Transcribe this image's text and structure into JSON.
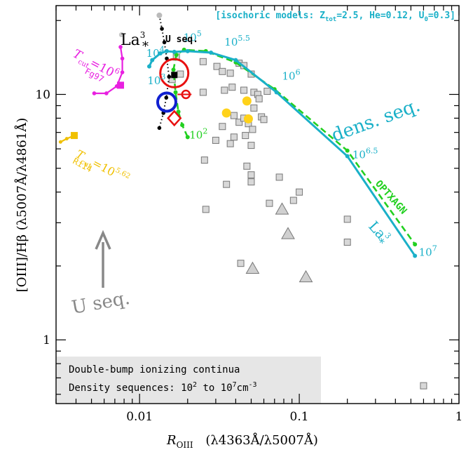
{
  "chart_data": {
    "type": "scatter",
    "x_scale": "log",
    "y_scale": "log",
    "xlim": [
      0.003,
      1
    ],
    "ylim": [
      0.55,
      23
    ],
    "x_ticks": [
      {
        "v": 0.01,
        "label": "0.01"
      },
      {
        "v": 0.1,
        "label": "0.1"
      },
      {
        "v": 1,
        "label": "1"
      }
    ],
    "y_ticks": [
      {
        "v": 1,
        "label": "1"
      },
      {
        "v": 10,
        "label": "10"
      }
    ],
    "xlabel_main": "R",
    "xlabel_sub": "OIII",
    "xlabel_rest": "(λ4363Å/λ5007Å)",
    "ylabel": "[OIII]/Hβ  (λ5007Å/λ4861Å)",
    "header_note": "[isochoric models: Z_tot=2.5, He=0.12, U_0=0.3]",
    "header_parts": {
      "a": "[isochoric models: Z",
      "a_sub": "tot",
      "b": "=2.5, He=0.12, U",
      "b_sub": "0",
      "c": "=0.3]"
    },
    "legend_box": {
      "line1": "Double-bump ionizing continua",
      "line2_a": "Density sequences: 10",
      "line2_a_sup": "2",
      "line2_b": " to 10",
      "line2_b_sup": "7",
      "line2_c": "cm",
      "line2_c_sup": "-3"
    },
    "colors": {
      "la_seq": "#1ab0c8",
      "optxagn": "#22d020",
      "tcut_fg97": "#e820e0",
      "tcut_ri14": "#f0c000",
      "u_seq_arrow": "#888888",
      "red_marker": "#e81010",
      "blue_marker": "#1020d0",
      "gray_squares": "#c8c8c8",
      "black_points": "#000000"
    },
    "series": [
      {
        "name": "La*³",
        "label": "La",
        "label_sup": "3",
        "label_ast": "*",
        "points": [
          {
            "x": 0.0115,
            "y": 13.0
          },
          {
            "x": 0.012,
            "y": 13.8
          },
          {
            "x": 0.0135,
            "y": 14.7
          },
          {
            "x": 0.0148,
            "y": 15.0
          },
          {
            "x": 0.0165,
            "y": 14.9
          },
          {
            "x": 0.02,
            "y": 15.0
          },
          {
            "x": 0.028,
            "y": 14.8
          },
          {
            "x": 0.04,
            "y": 13.8
          },
          {
            "x": 0.072,
            "y": 10.2
          },
          {
            "x": 0.2,
            "y": 5.6
          },
          {
            "x": 0.53,
            "y": 2.2
          }
        ]
      },
      {
        "name": "OPTXAGN",
        "points": [
          {
            "x": 0.02,
            "y": 6.7
          },
          {
            "x": 0.0185,
            "y": 7.5
          },
          {
            "x": 0.0175,
            "y": 8.5
          },
          {
            "x": 0.0168,
            "y": 10.2
          },
          {
            "x": 0.0163,
            "y": 12.6
          },
          {
            "x": 0.017,
            "y": 14.5
          },
          {
            "x": 0.019,
            "y": 15.2
          },
          {
            "x": 0.026,
            "y": 15.0
          },
          {
            "x": 0.04,
            "y": 13.5
          },
          {
            "x": 0.07,
            "y": 10.5
          },
          {
            "x": 0.2,
            "y": 5.9
          },
          {
            "x": 0.53,
            "y": 2.45
          }
        ]
      }
    ],
    "dens_labels": [
      {
        "text": "10",
        "sup": "2",
        "x": 0.0205,
        "y": 6.6,
        "color": "optx"
      },
      {
        "text": "10",
        "sup": "3",
        "x": 0.0112,
        "y": 11.0,
        "color": "la"
      },
      {
        "text": "10",
        "sup": "4",
        "x": 0.011,
        "y": 14.2,
        "color": "la"
      },
      {
        "text": "10",
        "sup": "5",
        "x": 0.0188,
        "y": 16.5,
        "color": "la"
      },
      {
        "text": "10",
        "sup": "5.5",
        "x": 0.034,
        "y": 15.8,
        "color": "la"
      },
      {
        "text": "10",
        "sup": "6",
        "x": 0.078,
        "y": 11.5,
        "color": "la"
      },
      {
        "text": "10",
        "sup": "6.5",
        "x": 0.215,
        "y": 5.5,
        "color": "la"
      },
      {
        "text": "10",
        "sup": "7",
        "x": 0.56,
        "y": 2.2,
        "color": "la"
      }
    ],
    "u_seq_points": [
      {
        "x": 0.0133,
        "y": 21.0
      },
      {
        "x": 0.0138,
        "y": 18.5
      },
      {
        "x": 0.0143,
        "y": 16.3
      },
      {
        "x": 0.0148,
        "y": 14.0
      },
      {
        "x": 0.0153,
        "y": 11.8
      },
      {
        "x": 0.0147,
        "y": 9.7
      },
      {
        "x": 0.0141,
        "y": 8.4
      },
      {
        "x": 0.0133,
        "y": 7.3
      }
    ],
    "tcut_fg97_points": [
      {
        "x": 0.0076,
        "y": 15.6
      },
      {
        "x": 0.0078,
        "y": 14.0
      },
      {
        "x": 0.0078,
        "y": 12.3
      },
      {
        "x": 0.0072,
        "y": 10.8
      },
      {
        "x": 0.0062,
        "y": 10.1
      },
      {
        "x": 0.0052,
        "y": 10.1
      }
    ],
    "tcut_ri14_points": [
      {
        "x": 0.0039,
        "y": 6.8
      },
      {
        "x": 0.0035,
        "y": 6.6
      },
      {
        "x": 0.0032,
        "y": 6.4
      }
    ],
    "gray_squares": [
      {
        "x": 0.017,
        "y": 14.2
      },
      {
        "x": 0.025,
        "y": 13.6
      },
      {
        "x": 0.0305,
        "y": 13.0
      },
      {
        "x": 0.033,
        "y": 12.4
      },
      {
        "x": 0.037,
        "y": 12.2
      },
      {
        "x": 0.042,
        "y": 13.4
      },
      {
        "x": 0.045,
        "y": 13.1
      },
      {
        "x": 0.05,
        "y": 12.1
      },
      {
        "x": 0.016,
        "y": 11.5
      },
      {
        "x": 0.018,
        "y": 12.1
      },
      {
        "x": 0.025,
        "y": 10.2
      },
      {
        "x": 0.034,
        "y": 10.4
      },
      {
        "x": 0.038,
        "y": 10.7
      },
      {
        "x": 0.045,
        "y": 10.4
      },
      {
        "x": 0.052,
        "y": 10.2
      },
      {
        "x": 0.055,
        "y": 10.0
      },
      {
        "x": 0.063,
        "y": 10.3
      },
      {
        "x": 0.052,
        "y": 8.8
      },
      {
        "x": 0.056,
        "y": 9.6
      },
      {
        "x": 0.039,
        "y": 8.2
      },
      {
        "x": 0.058,
        "y": 8.1
      },
      {
        "x": 0.06,
        "y": 7.9
      },
      {
        "x": 0.033,
        "y": 7.4
      },
      {
        "x": 0.042,
        "y": 7.7
      },
      {
        "x": 0.045,
        "y": 8.0
      },
      {
        "x": 0.048,
        "y": 7.6
      },
      {
        "x": 0.051,
        "y": 7.2
      },
      {
        "x": 0.039,
        "y": 6.7
      },
      {
        "x": 0.046,
        "y": 6.8
      },
      {
        "x": 0.03,
        "y": 6.5
      },
      {
        "x": 0.037,
        "y": 6.3
      },
      {
        "x": 0.05,
        "y": 6.2
      },
      {
        "x": 0.0255,
        "y": 5.4
      },
      {
        "x": 0.047,
        "y": 5.1
      },
      {
        "x": 0.05,
        "y": 4.7
      },
      {
        "x": 0.05,
        "y": 4.4
      },
      {
        "x": 0.035,
        "y": 4.3
      },
      {
        "x": 0.075,
        "y": 4.6
      },
      {
        "x": 0.1,
        "y": 4.0
      },
      {
        "x": 0.092,
        "y": 3.7
      },
      {
        "x": 0.065,
        "y": 3.6
      },
      {
        "x": 0.026,
        "y": 3.4
      },
      {
        "x": 0.2,
        "y": 3.1
      },
      {
        "x": 0.2,
        "y": 2.5
      },
      {
        "x": 0.043,
        "y": 2.05
      },
      {
        "x": 0.6,
        "y": 0.65
      }
    ],
    "gray_triangles": [
      {
        "x": 0.078,
        "y": 3.4
      },
      {
        "x": 0.085,
        "y": 2.7
      },
      {
        "x": 0.051,
        "y": 1.95
      },
      {
        "x": 0.11,
        "y": 1.8
      }
    ],
    "yellow_circles": [
      {
        "x": 0.035,
        "y": 8.4
      },
      {
        "x": 0.047,
        "y": 9.4
      },
      {
        "x": 0.048,
        "y": 7.95
      }
    ],
    "black_square": {
      "x": 0.0165,
      "y": 12.0
    },
    "blue_circle": {
      "x": 0.0148,
      "y": 9.3
    },
    "red_circle": {
      "x": 0.0165,
      "y": 12.2
    },
    "red_small": {
      "x": 0.0195,
      "y": 10.0
    },
    "red_diamond": {
      "x": 0.0165,
      "y": 8.0
    },
    "text_ann": {
      "la_star_label": "La",
      "la_star_sup": "3",
      "la_star_ast": "*",
      "u_seq_small": "U seq.",
      "dens_seq": "dens. seq.",
      "optxagn": "OPTXAGN",
      "la_star_mid": "La",
      "la_star_mid_sup": "3",
      "la_star_mid_ast": "*",
      "tcut_fg_a": "T",
      "tcut_fg_sub": "cut",
      "tcut_fg_b": "=10",
      "tcut_fg_sup": "6",
      "fg97": "Fg97",
      "tcut_ri_a": "T",
      "tcut_ri_sub": "cut",
      "tcut_ri_b": "=10",
      "tcut_ri_sup": "5.62",
      "ri14": "Ri14",
      "u_seq_big": "U seq."
    }
  }
}
